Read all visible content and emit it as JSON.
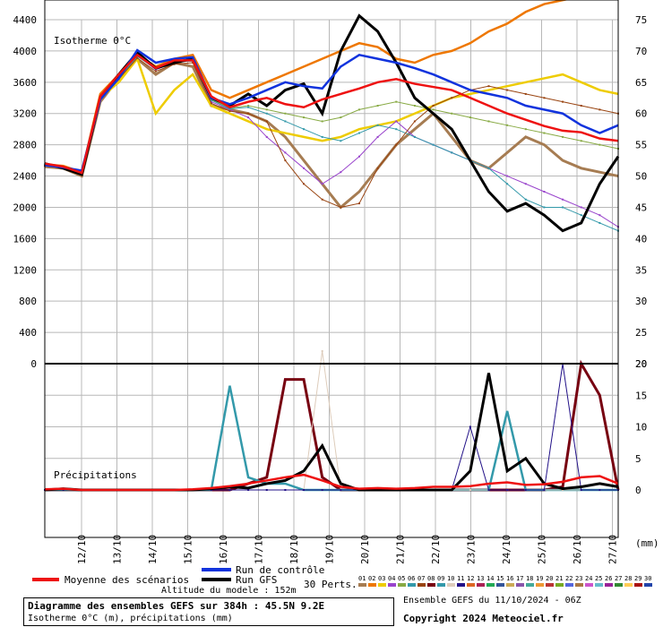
{
  "chart_data": {
    "type": "line",
    "title": "Diagramme des ensembles GEFS sur 384h : 45.5N 9.2E",
    "subtitle": "Isotherme 0°C (m), précipitations (mm)",
    "run_info": "Ensemble GEFS du 11/10/2024 - 06Z",
    "copyright": "Copyright 2024 Meteociel.fr",
    "model_altitude": "Altitude du modele : 152m",
    "x_labels": [
      "12/10",
      "13/10",
      "14/10",
      "15/10",
      "16/10",
      "17/10",
      "18/10",
      "19/10",
      "20/10",
      "21/10",
      "22/10",
      "23/10",
      "24/10",
      "25/10",
      "26/10",
      "27/10"
    ],
    "x_range": [
      0,
      64
    ],
    "upper_panel": {
      "label": "Isotherme 0°C",
      "ylim": [
        0,
        4400
      ],
      "left_ticks": [
        "0",
        "400",
        "800",
        "1200",
        "1600",
        "2000",
        "2400",
        "2800",
        "3200",
        "3600",
        "4000",
        "4400"
      ],
      "right_ticks": [
        "20",
        "25",
        "30",
        "35",
        "40",
        "45",
        "50",
        "55",
        "60",
        "65",
        "70",
        "75"
      ],
      "series": [
        {
          "name": "Moyenne des scénarios",
          "color": "#ee1111",
          "values": [
            2560,
            2520,
            2440,
            3420,
            3700,
            3950,
            3780,
            3880,
            3880,
            3420,
            3280,
            3350,
            3400,
            3320,
            3280,
            3380,
            3450,
            3520,
            3600,
            3640,
            3580,
            3540,
            3500,
            3400,
            3300,
            3200,
            3120,
            3040,
            2980,
            2960,
            2880,
            2850
          ]
        },
        {
          "name": "Run de contrôle",
          "color": "#1133dd",
          "values": [
            2540,
            2510,
            2470,
            3380,
            3650,
            4010,
            3850,
            3900,
            3920,
            3400,
            3320,
            3400,
            3500,
            3600,
            3550,
            3520,
            3800,
            3950,
            3900,
            3850,
            3780,
            3700,
            3600,
            3500,
            3450,
            3400,
            3300,
            3250,
            3200,
            3050,
            2950,
            3050
          ]
        },
        {
          "name": "Run GFS",
          "color": "#000000",
          "values": [
            2560,
            2500,
            2420,
            3400,
            3700,
            3980,
            3780,
            3850,
            3900,
            3400,
            3300,
            3450,
            3300,
            3500,
            3580,
            3200,
            4000,
            4450,
            4250,
            3850,
            3400,
            3200,
            3000,
            2600,
            2200,
            1950,
            2050,
            1900,
            1700,
            1800,
            2300,
            2650
          ]
        },
        {
          "name": "01",
          "color": "#a67c52",
          "values": [
            2520,
            2500,
            2400,
            3350,
            3650,
            3900,
            3700,
            3850,
            3800,
            3300,
            3250,
            3200,
            3100,
            2900,
            2600,
            2300,
            2000,
            2200,
            2500,
            2800,
            3000,
            3200,
            2900,
            2600,
            2500,
            2700,
            2900,
            2800,
            2600,
            2500,
            2450,
            2400
          ]
        },
        {
          "name": "02",
          "color": "#ee7700",
          "values": [
            2550,
            2530,
            2450,
            3450,
            3700,
            3950,
            3800,
            3900,
            3950,
            3500,
            3400,
            3500,
            3600,
            3700,
            3800,
            3900,
            4000,
            4100,
            4050,
            3900,
            3850,
            3950,
            4000,
            4100,
            4250,
            4350,
            4500,
            4600,
            4650,
            4700,
            4750,
            4800
          ]
        },
        {
          "name": "03",
          "color": "#eecc00",
          "values": [
            2540,
            2520,
            2430,
            3400,
            3600,
            3900,
            3200,
            3500,
            3700,
            3300,
            3200,
            3100,
            3000,
            2950,
            2900,
            2850,
            2900,
            3000,
            3050,
            3100,
            3200,
            3300,
            3400,
            3450,
            3500,
            3550,
            3600,
            3650,
            3700,
            3600,
            3500,
            3450
          ]
        },
        {
          "name": "04",
          "color": "#9944cc",
          "values": [
            2530,
            2510,
            2420,
            3380,
            3680,
            3940,
            3760,
            3850,
            3880,
            3350,
            3250,
            3150,
            2900,
            2700,
            2500,
            2300,
            2450,
            2650,
            2900,
            3100,
            2900,
            2800,
            2700,
            2600,
            2500,
            2400,
            2300,
            2200,
            2100,
            2000,
            1900,
            1750
          ]
        },
        {
          "name": "05",
          "color": "#88aa44",
          "values": [
            2540,
            2520,
            2440,
            3420,
            3690,
            3960,
            3780,
            3870,
            3890,
            3380,
            3270,
            3300,
            3250,
            3200,
            3150,
            3100,
            3150,
            3250,
            3300,
            3350,
            3300,
            3250,
            3200,
            3150,
            3100,
            3050,
            3000,
            2950,
            2900,
            2850,
            2800,
            2750
          ]
        },
        {
          "name": "06",
          "color": "#3399aa",
          "values": [
            2550,
            2510,
            2430,
            3390,
            3660,
            3930,
            3770,
            3860,
            3870,
            3370,
            3260,
            3280,
            3200,
            3100,
            3000,
            2900,
            2850,
            2950,
            3050,
            3000,
            2900,
            2800,
            2700,
            2600,
            2500,
            2300,
            2100,
            2000,
            2000,
            1900,
            1800,
            1700
          ]
        },
        {
          "name": "07",
          "color": "#994411",
          "values": [
            2530,
            2500,
            2410,
            3370,
            3640,
            3910,
            3740,
            3830,
            3850,
            3330,
            3230,
            3200,
            3100,
            2600,
            2300,
            2100,
            2000,
            2050,
            2500,
            2800,
            3100,
            3300,
            3400,
            3500,
            3550,
            3500,
            3450,
            3400,
            3350,
            3300,
            3250,
            3200
          ]
        }
      ]
    },
    "lower_panel": {
      "label": "Précipitations",
      "unit": "(mm)",
      "ylim": [
        0,
        20
      ],
      "right_ticks": [
        "0",
        "5",
        "10",
        "15",
        "20"
      ],
      "series": [
        {
          "name": "Moyenne des scénarios",
          "color": "#ee1111",
          "values": [
            0.1,
            0.2,
            0,
            0,
            0,
            0,
            0,
            0,
            0.1,
            0.3,
            0.6,
            1,
            1.5,
            2,
            2.4,
            1.5,
            0.5,
            0.2,
            0.3,
            0.2,
            0.3,
            0.5,
            0.5,
            0.6,
            1,
            1.2,
            0.8,
            0.9,
            1.3,
            2,
            2.2,
            1
          ]
        },
        {
          "name": "Run GFS",
          "color": "#000000",
          "values": [
            0,
            0.2,
            0,
            0,
            0,
            0,
            0,
            0,
            0,
            0.2,
            0.5,
            0.3,
            1,
            1.5,
            3,
            7,
            1,
            0,
            0,
            0,
            0,
            0,
            0,
            3,
            18.5,
            3,
            5,
            1,
            0.2,
            0.5,
            1,
            0.5
          ]
        },
        {
          "name": "08",
          "color": "#770011",
          "values": [
            0,
            0,
            0,
            0,
            0,
            0,
            0,
            0,
            0,
            0,
            0,
            1,
            2,
            17.5,
            17.5,
            2,
            0,
            0,
            0,
            0,
            0,
            0,
            0,
            0,
            0,
            0,
            0,
            0,
            0.5,
            20,
            15,
            0
          ]
        },
        {
          "name": "09",
          "color": "#3399aa",
          "values": [
            0,
            0,
            0,
            0,
            0,
            0,
            0,
            0,
            0,
            0,
            16.5,
            2,
            1,
            1,
            0,
            0,
            0,
            0,
            0,
            0,
            0,
            0,
            0,
            0,
            0,
            12.5,
            0,
            0,
            0,
            0,
            0,
            0
          ]
        },
        {
          "name": "10",
          "color": "#ddccbb",
          "values": [
            0,
            0,
            0,
            0,
            0,
            0,
            0,
            0,
            0,
            0,
            0,
            0,
            0,
            0,
            0,
            22,
            0,
            0,
            0,
            0,
            0,
            0,
            0,
            0,
            0,
            0,
            0,
            0,
            0,
            0,
            0,
            0
          ]
        },
        {
          "name": "11",
          "color": "#221188",
          "values": [
            0,
            0,
            0,
            0,
            0,
            0,
            0,
            0,
            0,
            0,
            0,
            0,
            0,
            0,
            0,
            0,
            0,
            0,
            0,
            0,
            0,
            0,
            0,
            10,
            0,
            0,
            0,
            0,
            20,
            0,
            0,
            0
          ]
        }
      ]
    }
  },
  "legend": {
    "mean_label": "Moyenne des scénarios",
    "mean_color": "#ee1111",
    "control_label": "Run de contrôle",
    "control_color": "#1133dd",
    "gfs_label": "Run GFS",
    "gfs_color": "#000000",
    "perts_label": "30 Perts.",
    "pert_numbers": [
      "01",
      "02",
      "03",
      "04",
      "05",
      "06",
      "07",
      "08",
      "09",
      "10",
      "11",
      "12",
      "13",
      "14",
      "15",
      "16",
      "17",
      "18",
      "19",
      "20",
      "21",
      "22",
      "23",
      "24",
      "25",
      "26",
      "27",
      "28",
      "29",
      "30"
    ],
    "pert_colors": [
      "#a67c52",
      "#ee7700",
      "#eecc00",
      "#9944cc",
      "#88aa44",
      "#3399aa",
      "#994411",
      "#770011",
      "#3399aa",
      "#ddccbb",
      "#221188",
      "#dd6622",
      "#aa2255",
      "#22aa55",
      "#335599",
      "#ccaa55",
      "#8855aa",
      "#44aa99",
      "#ee9933",
      "#bb3333",
      "#77aa22",
      "#5566dd",
      "#aa7744",
      "#cc55cc",
      "#66bbcc",
      "#992299",
      "#338833",
      "#ffcc55",
      "#aa1111",
      "#2244aa"
    ]
  }
}
